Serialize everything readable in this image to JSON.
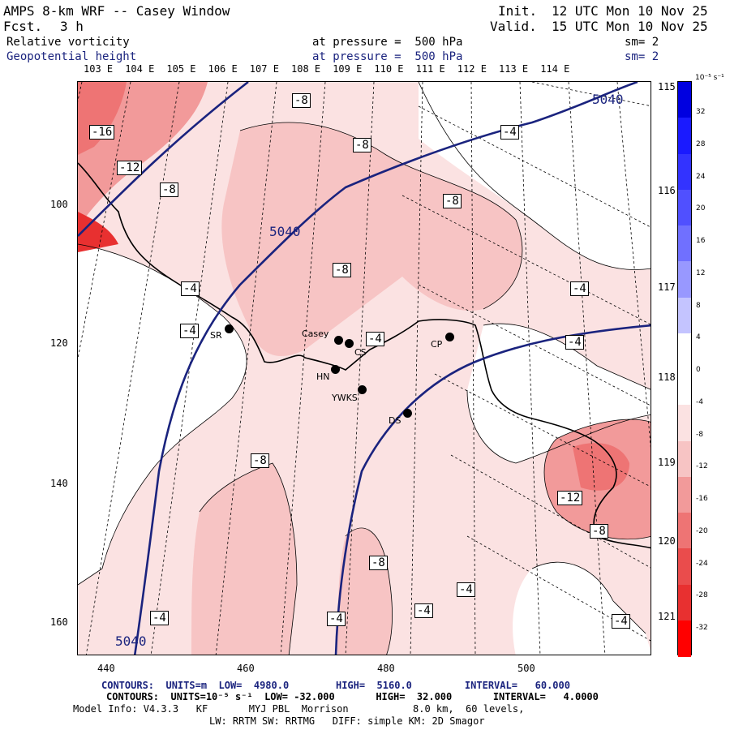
{
  "header": {
    "model": "AMPS 8-km WRF -- Casey Window",
    "fcst_label": "Fcst.",
    "fcst_value": "3 h",
    "init_label": "Init.",
    "init_value": "12 UTC Mon 10 Nov 25",
    "valid_label": "Valid.",
    "valid_value": "15 UTC Mon 10 Nov 25",
    "field1": "Relative vorticity",
    "field1_pressure": "at pressure =  500 hPa",
    "field1_sm": "sm= 2",
    "field2": "Geopotential height",
    "field2_pressure": "at pressure =  500 hPa",
    "field2_sm": "sm= 2"
  },
  "map": {
    "top_lon_labels": [
      "103 E",
      "104 E",
      "105 E",
      "106 E",
      "107 E",
      "108 E",
      "109 E",
      "110 E",
      "111 E",
      "112 E",
      "113 E",
      "114 E"
    ],
    "right_lon_labels": [
      "115 E",
      "116 E",
      "117 E",
      "118 E",
      "119 E",
      "120 E",
      "121 E"
    ],
    "x_ticks": [
      "440",
      "460",
      "480",
      "500"
    ],
    "y_ticks": [
      "100",
      "120",
      "140",
      "160"
    ],
    "height_labels": [
      "5040",
      "5040",
      "5040"
    ],
    "vorticity_labels": [
      "-16",
      "-12",
      "-8",
      "-8",
      "-8",
      "-8",
      "-8",
      "-4",
      "-4",
      "-4",
      "-4",
      "-4",
      "-8",
      "-12",
      "-8",
      "-8",
      "-4",
      "-4",
      "-4",
      "-4",
      "-4"
    ],
    "stations": [
      {
        "name": "SR"
      },
      {
        "name": "Casey"
      },
      {
        "name": "CS"
      },
      {
        "name": "HN"
      },
      {
        "name": "YWKS"
      },
      {
        "name": "DS"
      },
      {
        "name": "CP"
      }
    ]
  },
  "colorbar": {
    "unit": "10⁻⁵ s⁻¹",
    "ticks": [
      "32",
      "28",
      "24",
      "20",
      "16",
      "12",
      "8",
      "4",
      "0",
      "-4",
      "-8",
      "-12",
      "-16",
      "-20",
      "-24",
      "-28",
      "-32"
    ],
    "colors": [
      "#0000e0",
      "#1a1aff",
      "#3333ff",
      "#5050ff",
      "#7070ff",
      "#9898ff",
      "#c4c4ff",
      "#ffffff",
      "#ffffff",
      "#fbe2e2",
      "#f7c4c4",
      "#f29a9a",
      "#ee7474",
      "#ea4c4c",
      "#e83030",
      "#ff0000"
    ]
  },
  "footer": {
    "line1": "CONTOURS:  UNITS=m  LOW=  4980.0        HIGH=  5160.0         INTERVAL=   60.000",
    "line2": "CONTOURS:  UNITS=10⁻⁵ s⁻¹  LOW= -32.000       HIGH=  32.000       INTERVAL=   4.0000",
    "line3": "Model Info: V4.3.3   KF       MYJ PBL  Morrison           8.0 km,  60 levels,",
    "line4": "LW: RRTM SW: RRTMG   DIFF: simple KM: 2D Smagor"
  }
}
